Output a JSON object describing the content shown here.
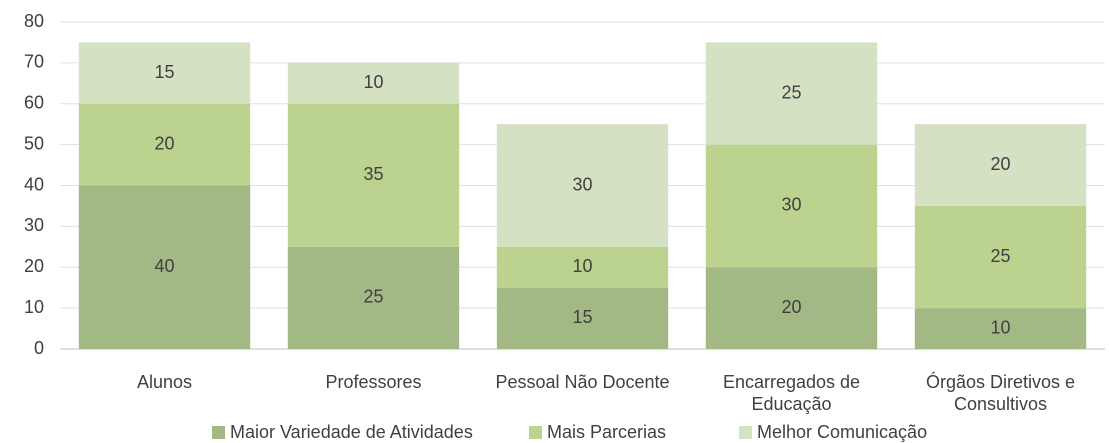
{
  "chart_data": {
    "type": "stacked_bar",
    "categories": [
      "Alunos",
      "Professores",
      "Pessoal Não Docente",
      "Encarregados de Educação",
      "Órgãos Diretivos e Consultivos"
    ],
    "series": [
      {
        "name": "Maior Variedade de Atividades",
        "color": "#a3b985",
        "values": [
          40,
          25,
          15,
          20,
          10
        ]
      },
      {
        "name": "Mais Parcerias",
        "color": "#bcd38f",
        "values": [
          20,
          35,
          10,
          30,
          25
        ]
      },
      {
        "name": "Melhor Comunicação",
        "color": "#d5e1c3",
        "values": [
          15,
          10,
          30,
          25,
          20
        ]
      }
    ],
    "ylim": [
      0,
      80
    ],
    "yticks": [
      0,
      10,
      20,
      30,
      40,
      50,
      60,
      70,
      80
    ],
    "grid": true,
    "legend": "bottom"
  }
}
